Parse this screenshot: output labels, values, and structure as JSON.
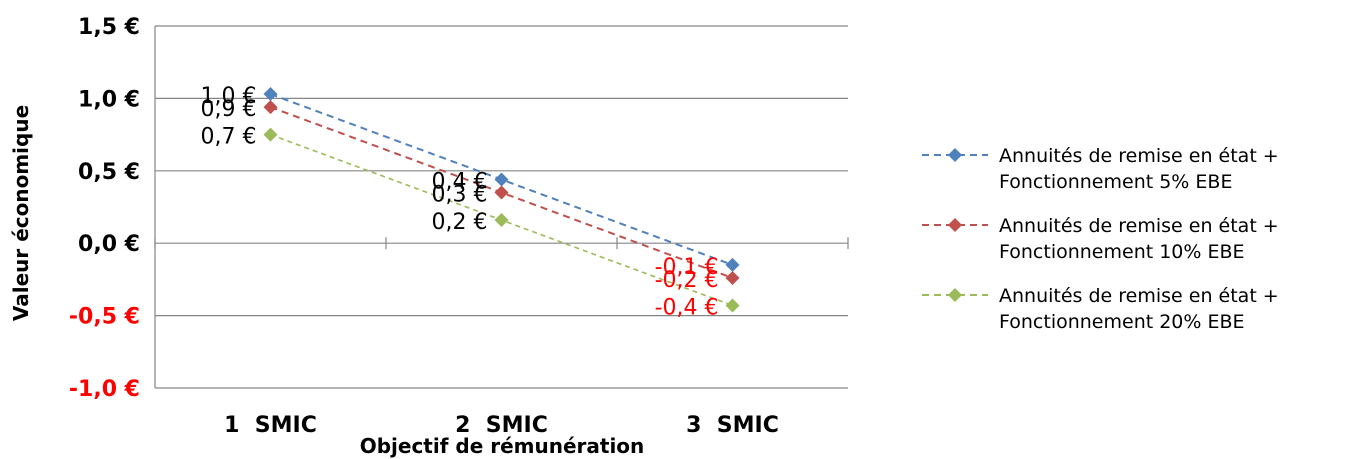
{
  "chart_data": {
    "type": "line",
    "categories": [
      "1  SMIC",
      "2  SMIC",
      "3  SMIC"
    ],
    "xlabel": "Objectif de rémunération",
    "ylabel": "Valeur économique",
    "ylim": [
      -1.0,
      1.5
    ],
    "ytick_values": [
      1.5,
      1.0,
      0.5,
      0.0,
      -0.5,
      -1.0
    ],
    "ytick_labels": [
      "1,5 €",
      "1,0 €",
      "0,5 €",
      "0,0 €",
      "-0,5 €",
      "-1,0 €"
    ],
    "grid": true,
    "legend_position": "right",
    "positive_color": "#000000",
    "negative_color": "#ff0000",
    "series": [
      {
        "name_lines": [
          "Annuités de remise en état +",
          "Fonctionnement 5% EBE"
        ],
        "color": "#4f81bd",
        "values": [
          1.03,
          0.44,
          -0.15
        ],
        "labels": [
          "1,0 €",
          "0,4 €",
          "-0,1 €"
        ]
      },
      {
        "name_lines": [
          "Annuités de remise en état +",
          "Fonctionnement 10% EBE"
        ],
        "color": "#c0504d",
        "values": [
          0.94,
          0.35,
          -0.24
        ],
        "labels": [
          "0,9 €",
          "0,3 €",
          "-0,2 €"
        ]
      },
      {
        "name_lines": [
          "Annuités de remise en état +",
          "Fonctionnement 20% EBE"
        ],
        "color": "#9bbb59",
        "values": [
          0.75,
          0.16,
          -0.43
        ],
        "labels": [
          "0,7 €",
          "0,2 €",
          "-0,4 €"
        ]
      }
    ]
  }
}
